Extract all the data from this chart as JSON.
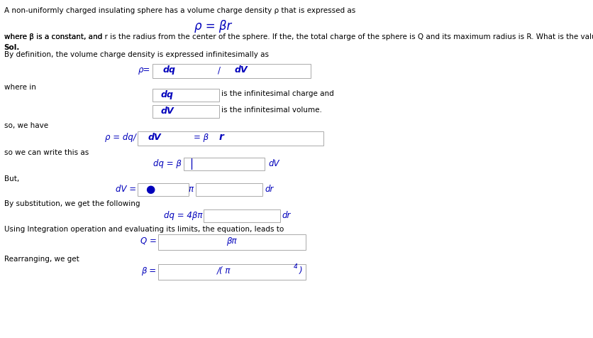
{
  "bg_color": "#ffffff",
  "text_color": "#000000",
  "blue_color": "#0000bb",
  "box_edge": "#aaaaaa",
  "line1": "A non-uniformly charged insulating sphere has a volume charge density ρ that is expressed as",
  "main_eq": "ρ = βr",
  "line2a": "where β is a constant, and ",
  "line2b": "r",
  "line2c": " is the radius from the center of the sphere. If the, the total charge of the sphere is ",
  "line2d": "Q",
  "line2e": " and its maximum radius is ",
  "line2f": "R",
  "line2g": ". What is the value for  β?",
  "sol": "Sol.",
  "line3": "By definition, the volume charge density is expressed infinitesimally as",
  "where_in": "where in",
  "dq_def": "is the infinitesimal charge and",
  "dv_def": "is the infinitesimal volume.",
  "so_we_have": "so, we have",
  "so_write": "so we can write this as",
  "but": "But,",
  "by_sub": "By substitution, we get the following",
  "integration": "Using Integration operation and evaluating its limits, the equation, leads to",
  "rearranging": "Rearranging, we get"
}
